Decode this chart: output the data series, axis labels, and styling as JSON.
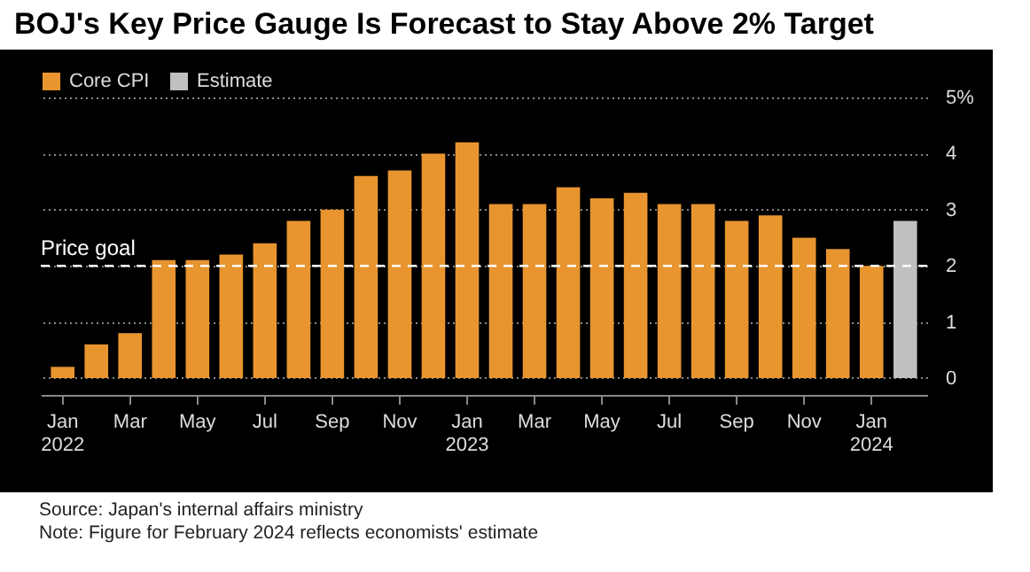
{
  "chart_data": {
    "type": "bar",
    "title": "BOJ's Key Price Gauge Is Forecast to Stay Above 2% Target",
    "categories": [
      "Jan 2022",
      null,
      "Mar",
      null,
      "May",
      null,
      "Jul",
      null,
      "Sep",
      null,
      "Nov",
      null,
      "Jan 2023",
      null,
      "Mar",
      null,
      "May",
      null,
      "Jul",
      null,
      "Sep",
      null,
      "Nov",
      null,
      "Jan 2024",
      null
    ],
    "series": [
      {
        "name": "Core CPI",
        "color": "#e8952f",
        "values": [
          0.2,
          0.6,
          0.8,
          2.1,
          2.1,
          2.2,
          2.4,
          2.8,
          3.0,
          3.6,
          3.7,
          4.0,
          4.2,
          3.1,
          3.1,
          3.4,
          3.2,
          3.3,
          3.1,
          3.1,
          2.8,
          2.9,
          2.5,
          2.3,
          2.0,
          null
        ]
      },
      {
        "name": "Estimate",
        "color": "#c0c0c0",
        "values": [
          null,
          null,
          null,
          null,
          null,
          null,
          null,
          null,
          null,
          null,
          null,
          null,
          null,
          null,
          null,
          null,
          null,
          null,
          null,
          null,
          null,
          null,
          null,
          null,
          null,
          2.8
        ]
      }
    ],
    "ylim": [
      -0.3,
      5
    ],
    "yticks": [
      0,
      1,
      2,
      3,
      4,
      {
        "value": 5,
        "label": "5%"
      }
    ],
    "grid": "y",
    "legend": "top left",
    "ref_lines": [
      {
        "axis": "y",
        "value": 2,
        "label": "Price goal",
        "color": "#ffffff",
        "line_style": "dashed"
      }
    ],
    "annotations": [
      "Source: Japan's internal affairs ministry",
      "Note: Figure for February 2024 reflects economists' estimate"
    ]
  }
}
